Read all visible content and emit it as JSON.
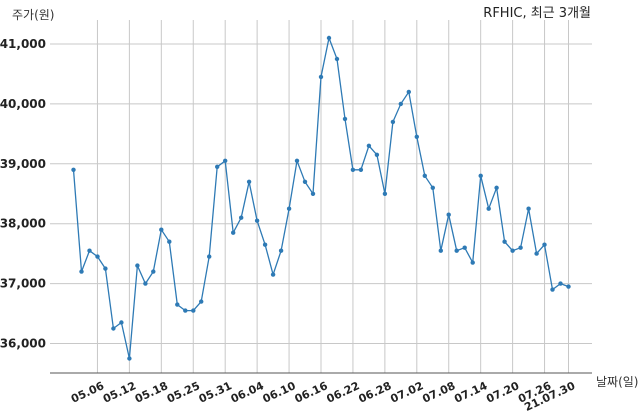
{
  "chart_data": {
    "type": "line",
    "title": "RFHIC, 최근 3개월",
    "xlabel": "날짜(일)",
    "ylabel": "주가(원)",
    "grid": true,
    "ylim": [
      35500,
      41400
    ],
    "yticks": [
      36000,
      37000,
      38000,
      39000,
      40000,
      41000
    ],
    "ytick_labels": [
      "36,000",
      "37,000",
      "38,000",
      "39,000",
      "40,000",
      "41,000"
    ],
    "xtick_labels": [
      "05.06",
      "05.12",
      "05.18",
      "05.25",
      "05.31",
      "06.04",
      "06.10",
      "06.16",
      "06.22",
      "06.28",
      "07.02",
      "07.08",
      "07.14",
      "07.20",
      "07.26",
      "21.07.30"
    ],
    "xtick_positions": [
      3,
      7,
      11,
      15,
      19,
      23,
      27,
      31,
      35,
      39,
      43,
      47,
      51,
      55,
      59,
      62
    ],
    "series": [
      {
        "name": "",
        "color": "#2e7ab5",
        "values": [
          38900,
          37200,
          37550,
          37450,
          37250,
          36250,
          36350,
          35750,
          37300,
          37000,
          37200,
          37900,
          37700,
          36650,
          36550,
          36550,
          36700,
          37450,
          38950,
          39050,
          37850,
          38100,
          38700,
          38050,
          37650,
          37150,
          37550,
          38250,
          39050,
          38700,
          38500,
          40450,
          41100,
          40750,
          39750,
          38900,
          38900,
          39300,
          39150,
          38500,
          39700,
          40000,
          40200,
          39450,
          38800,
          38600,
          37550,
          38150,
          37550,
          37600,
          37350,
          38800,
          38250,
          38600,
          37700,
          37550,
          37600,
          38250,
          37500,
          37650,
          36900,
          37000,
          36950
        ]
      }
    ]
  }
}
